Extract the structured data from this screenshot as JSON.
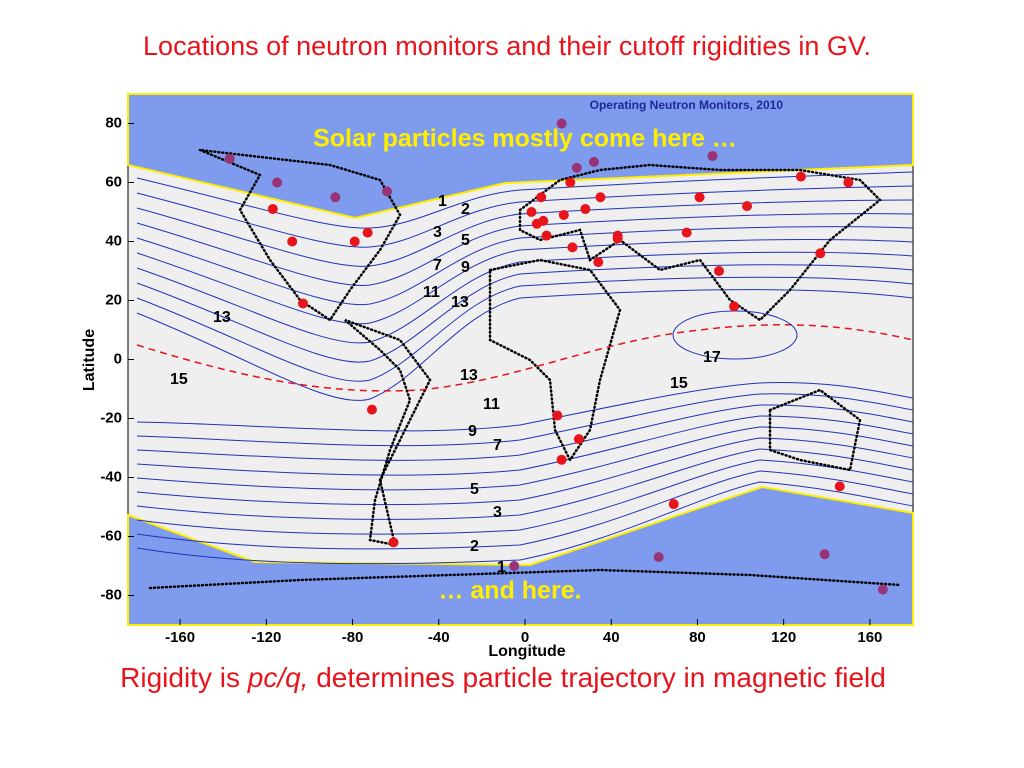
{
  "title": "Locations of neutron monitors and their cutoff rigidities in GV.",
  "footer": [
    "Rigidity is ",
    "pc/q,",
    " determines particle trajectory in magnetic field"
  ],
  "contour_labels": [
    "1",
    "2",
    "3",
    "5",
    "7",
    "9",
    "11",
    "13",
    "13",
    "15",
    "17",
    "15",
    "13",
    "11",
    "9",
    "7",
    "5",
    "3",
    "2",
    "1"
  ],
  "chart_data": {
    "type": "scatter",
    "map_title": "Operating Neutron Monitors, 2010",
    "annotations": [
      "Solar particles mostly come here …",
      "… and here."
    ],
    "xlabel": "Longitude",
    "ylabel": "Latitude",
    "xlim": [
      -180,
      180
    ],
    "ylim": [
      -90,
      90
    ],
    "xticks": [
      -160,
      -120,
      -80,
      -40,
      0,
      40,
      80,
      120,
      160
    ],
    "yticks": [
      -80,
      -60,
      -40,
      -20,
      0,
      20,
      40,
      60,
      80
    ],
    "series": [
      {
        "color": "#e8141c",
        "x": [
          -117,
          -108,
          -79,
          -73,
          -103,
          -71,
          -61,
          3,
          7.5,
          5.5,
          8.5,
          10,
          18,
          21,
          28,
          35,
          22,
          34,
          43,
          43,
          15,
          25,
          17,
          69,
          75,
          81,
          90,
          103,
          128,
          150,
          137,
          97,
          146
        ],
        "values": [
          51,
          40,
          40,
          43,
          19,
          -17,
          -62,
          50,
          55,
          46,
          47,
          42,
          49,
          60,
          51,
          55,
          38,
          33,
          41,
          42,
          -19,
          -27,
          -34,
          -49,
          43,
          55,
          30,
          52,
          62,
          60,
          36,
          18,
          -43
        ]
      },
      {
        "color": "#993377",
        "x": [
          -137,
          -115,
          -88,
          -64,
          17,
          24,
          32,
          87,
          62,
          139,
          166,
          -5
        ],
        "values": [
          68,
          60,
          55,
          57,
          80,
          65,
          67,
          69,
          -67,
          -66,
          -78,
          -70
        ]
      }
    ]
  }
}
